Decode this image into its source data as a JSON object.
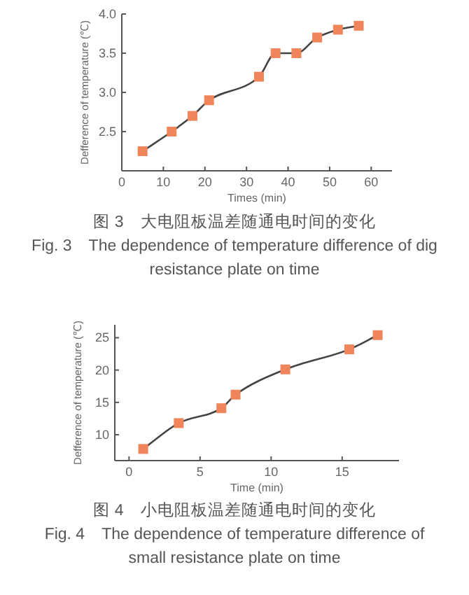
{
  "chart_data": [
    {
      "type": "line",
      "xlabel": "Times (min)",
      "ylabel": "Defference of temperature (℃)",
      "xlim": [
        0,
        65
      ],
      "xticks": [
        0,
        10,
        20,
        30,
        40,
        50,
        60
      ],
      "ylim": [
        2.0,
        4.0
      ],
      "yticks": [
        2.5,
        {
          "value": 3,
          "label": "3.0"
        },
        3.5,
        {
          "value": 4,
          "label": "4.0"
        }
      ],
      "marker": "square",
      "grid": false,
      "x": [
        5,
        12,
        17,
        21,
        33,
        37,
        42,
        47,
        52,
        57
      ],
      "series": [
        {
          "color": "#f0845a",
          "values": [
            2.25,
            2.5,
            2.7,
            2.9,
            3.2,
            3.5,
            3.5,
            3.7,
            3.8,
            3.85
          ]
        }
      ],
      "annotations": [
        "图 3　大电阻板温差随通电时间的变化",
        "Fig. 3　The dependence of temperature difference of dig resistance plate on time"
      ]
    },
    {
      "type": "line",
      "xlabel": "Time (min)",
      "ylabel": "Defference of temperature (℃)",
      "xlim": [
        -1,
        19
      ],
      "xticks": [
        0,
        5,
        10,
        15
      ],
      "ylim": [
        6,
        27
      ],
      "yticks": [
        10,
        15,
        20,
        25
      ],
      "marker": "square",
      "grid": false,
      "x": [
        1,
        3.5,
        6.5,
        7.5,
        11,
        15.5,
        17.5
      ],
      "series": [
        {
          "color": "#f0845a",
          "values": [
            7.8,
            11.8,
            14.1,
            16.2,
            20.1,
            23.2,
            25.4
          ]
        }
      ],
      "annotations": [
        "图 4　小电阻板温差随通电时间的变化",
        "Fig. 4　The dependence of temperature difference of small resistance plate on time"
      ]
    }
  ]
}
